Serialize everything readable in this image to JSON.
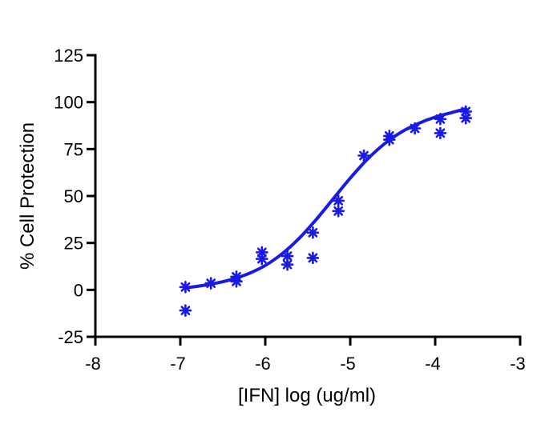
{
  "chart_data": {
    "type": "scatter",
    "title": "",
    "xlabel": "[IFN] log (ug/ml)",
    "ylabel": "% Cell Protection",
    "xlim": [
      -8,
      -3
    ],
    "ylim": [
      -25,
      125
    ],
    "xticks": [
      -8,
      -7,
      -6,
      -5,
      -4,
      -3
    ],
    "yticks": [
      -25,
      0,
      25,
      50,
      75,
      100,
      125
    ],
    "xtick_labels": [
      "-8",
      "-7",
      "-6",
      "-5",
      "-4",
      "-3"
    ],
    "ytick_labels": [
      "-25",
      "0",
      "25",
      "50",
      "75",
      "100",
      "125"
    ],
    "grid": false,
    "legend": "none",
    "color": "#1a1ae6",
    "points": [
      {
        "x": -6.94,
        "y": 1.5
      },
      {
        "x": -6.94,
        "y": -11
      },
      {
        "x": -6.64,
        "y": 3.5
      },
      {
        "x": -6.34,
        "y": 7
      },
      {
        "x": -6.34,
        "y": 4.5
      },
      {
        "x": -6.04,
        "y": 20
      },
      {
        "x": -6.04,
        "y": 16.5
      },
      {
        "x": -5.74,
        "y": 18
      },
      {
        "x": -5.74,
        "y": 13.5
      },
      {
        "x": -5.44,
        "y": 30.5
      },
      {
        "x": -5.44,
        "y": 17
      },
      {
        "x": -5.14,
        "y": 47.5
      },
      {
        "x": -5.14,
        "y": 42
      },
      {
        "x": -4.84,
        "y": 71.5
      },
      {
        "x": -4.54,
        "y": 82
      },
      {
        "x": -4.54,
        "y": 80
      },
      {
        "x": -4.24,
        "y": 86
      },
      {
        "x": -3.94,
        "y": 91
      },
      {
        "x": -3.94,
        "y": 83.5
      },
      {
        "x": -3.64,
        "y": 95
      },
      {
        "x": -3.64,
        "y": 91.5
      }
    ],
    "fit": {
      "x": [
        -6.94,
        -6.8,
        -6.6,
        -6.4,
        -6.2,
        -6.0,
        -5.8,
        -5.6,
        -5.4,
        -5.2,
        -5.0,
        -4.8,
        -4.6,
        -4.4,
        -4.2,
        -4.0,
        -3.8,
        -3.64
      ],
      "y": [
        1.0,
        1.9,
        3.4,
        5.5,
        8.6,
        13.0,
        19.3,
        27.5,
        37.5,
        48.5,
        59.5,
        69.5,
        77.7,
        84.0,
        88.6,
        92.0,
        94.5,
        96.5
      ]
    }
  }
}
